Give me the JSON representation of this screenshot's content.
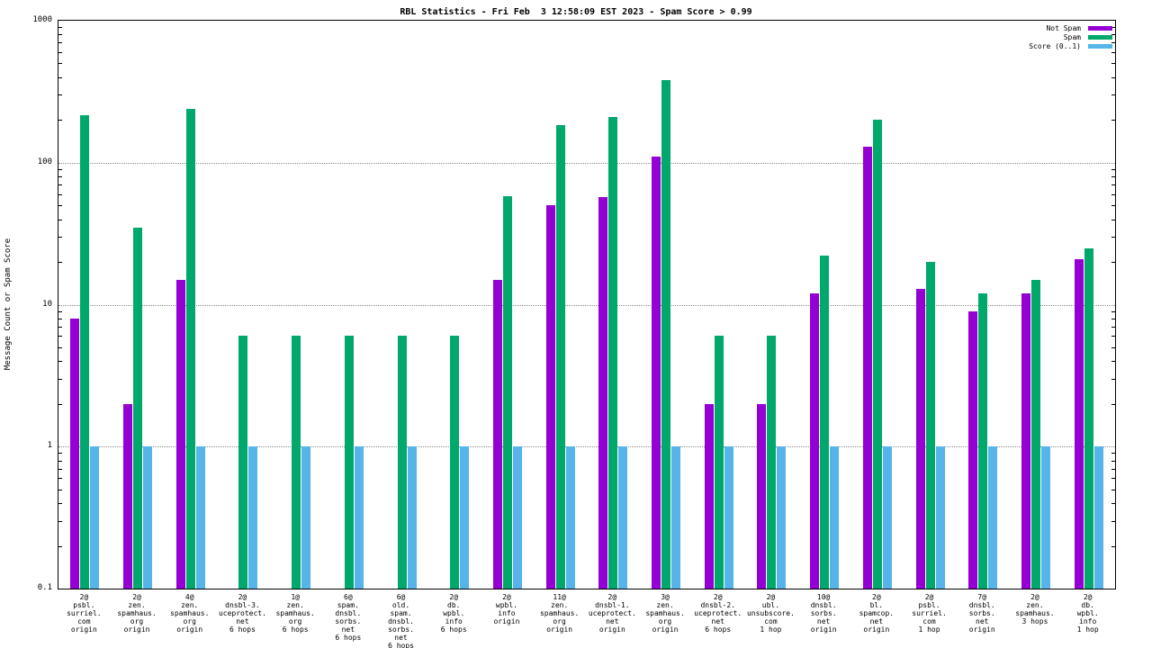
{
  "title": "RBL Statistics - Fri Feb  3 12:58:09 EST 2023 - Spam Score > 0.99",
  "ylabel": "Message Count or Spam Score",
  "chart_data": {
    "type": "bar",
    "y_scale": "log",
    "ylim": [
      0.1,
      1000
    ],
    "grid": "horizontal-dotted",
    "legend_position": "top-right-inside",
    "yticks": [
      {
        "v": 0.1,
        "label": "0.1"
      },
      {
        "v": 1,
        "label": "1"
      },
      {
        "v": 10,
        "label": "10"
      },
      {
        "v": 100,
        "label": "100"
      },
      {
        "v": 1000,
        "label": "1000"
      }
    ],
    "categories": [
      [
        "2@",
        "psbl.",
        "surriel.",
        "com",
        "origin"
      ],
      [
        "2@",
        "zen.",
        "spamhaus.",
        "org",
        "origin"
      ],
      [
        "4@",
        "zen.",
        "spamhaus.",
        "org",
        "origin"
      ],
      [
        "2@",
        "dnsbl-3.",
        "uceprotect.",
        "net",
        "6 hops"
      ],
      [
        "1@",
        "zen.",
        "spamhaus.",
        "org",
        "6 hops"
      ],
      [
        "6@",
        "spam.",
        "dnsbl.",
        "sorbs.",
        "net",
        "6 hops"
      ],
      [
        "6@",
        "old.",
        "spam.",
        "dnsbl.",
        "sorbs.",
        "net",
        "6 hops"
      ],
      [
        "2@",
        "db.",
        "wpbl.",
        "info",
        "6 hops"
      ],
      [
        "2@",
        "wpbl.",
        "info",
        "origin"
      ],
      [
        "11@",
        "zen.",
        "spamhaus.",
        "org",
        "origin"
      ],
      [
        "2@",
        "dnsbl-1.",
        "uceprotect.",
        "net",
        "origin"
      ],
      [
        "3@",
        "zen.",
        "spamhaus.",
        "org",
        "origin"
      ],
      [
        "2@",
        "dnsbl-2.",
        "uceprotect.",
        "net",
        "6 hops"
      ],
      [
        "2@",
        "ubl.",
        "unsubscore.",
        "com",
        "1 hop"
      ],
      [
        "10@",
        "dnsbl.",
        "sorbs.",
        "net",
        "origin"
      ],
      [
        "2@",
        "bl.",
        "spamcop.",
        "net",
        "origin"
      ],
      [
        "2@",
        "psbl.",
        "surriel.",
        "com",
        "1 hop"
      ],
      [
        "7@",
        "dnsbl.",
        "sorbs.",
        "net",
        "origin"
      ],
      [
        "2@",
        "zen.",
        "spamhaus.",
        "3 hops"
      ],
      [
        "2@",
        "db.",
        "wpbl.",
        "info",
        "1 hop"
      ]
    ],
    "series": [
      {
        "name": "Not Spam",
        "color": "#9400d3",
        "values": [
          8,
          2,
          15,
          null,
          null,
          null,
          null,
          null,
          15,
          50,
          57,
          110,
          2,
          2,
          12,
          130,
          13,
          9,
          12,
          21
        ]
      },
      {
        "name": "Spam",
        "color": "#00a86b",
        "values": [
          215,
          35,
          240,
          6,
          6,
          6,
          6,
          6,
          58,
          185,
          210,
          380,
          6,
          6,
          22,
          200,
          20,
          12,
          15,
          25
        ]
      },
      {
        "name": "Score (0..1)",
        "color": "#56b4e9",
        "values": [
          1,
          1,
          1,
          1,
          1,
          1,
          1,
          1,
          1,
          1,
          1,
          1,
          1,
          1,
          1,
          1,
          1,
          1,
          1,
          1
        ]
      }
    ]
  }
}
